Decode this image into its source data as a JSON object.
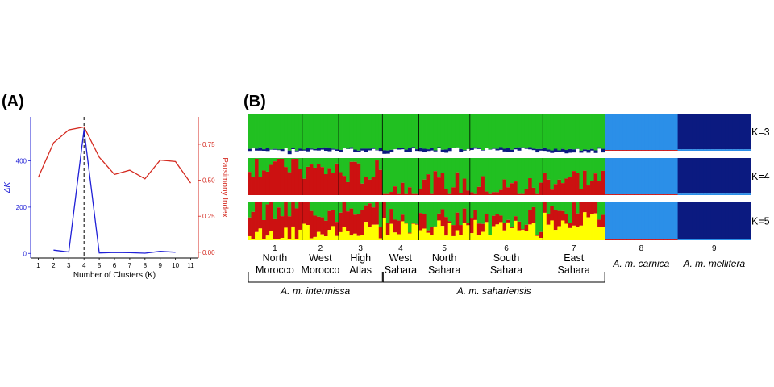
{
  "panel_a_label": "(A)",
  "panel_b_label": "(B)",
  "chart_data": [
    {
      "type": "line",
      "x": [
        1,
        2,
        3,
        4,
        5,
        6,
        7,
        8,
        9,
        10,
        11
      ],
      "xlabel": "Number of Clusters (K)",
      "xlim": [
        0.5,
        11.5
      ],
      "series": [
        {
          "name": "ΔK",
          "axis": "left",
          "color": "#1f1fd6",
          "x": [
            2,
            3,
            4,
            5,
            6,
            7,
            8,
            9,
            10
          ],
          "values": [
            14,
            6,
            535,
            2,
            4,
            3,
            1,
            9,
            5
          ]
        },
        {
          "name": "Parsimony Index",
          "axis": "right",
          "color": "#d42a20",
          "x": [
            1,
            2,
            3,
            4,
            5,
            6,
            7,
            8,
            9,
            10,
            11
          ],
          "values": [
            0.52,
            0.76,
            0.85,
            0.87,
            0.66,
            0.54,
            0.57,
            0.51,
            0.64,
            0.63,
            0.48
          ]
        }
      ],
      "ylabel_left": "ΔK",
      "ylabel_right": "Parsimony Index",
      "ylim_left": [
        -20,
        590
      ],
      "yticks_left": [
        0,
        200,
        400
      ],
      "ylim_right": [
        -0.04,
        0.94
      ],
      "yticks_right": [
        "0.00",
        "0.25",
        "0.50",
        "0.75"
      ],
      "vline_x": 4,
      "grid": false
    },
    {
      "type": "bar",
      "chart": "stacked admixture barplot",
      "rows": [
        "K=3",
        "K=4",
        "K=5"
      ],
      "groups": [
        {
          "num": "1",
          "name": [
            "North",
            "Morocco"
          ],
          "samples": 15
        },
        {
          "num": "2",
          "name": [
            "West",
            "Morocco"
          ],
          "samples": 10
        },
        {
          "num": "3",
          "name": [
            "High",
            "Atlas"
          ],
          "samples": 12
        },
        {
          "num": "4",
          "name": [
            "West",
            "Sahara"
          ],
          "samples": 10
        },
        {
          "num": "5",
          "name": [
            "North",
            "Sahara"
          ],
          "samples": 14
        },
        {
          "num": "6",
          "name": [
            "South",
            "Sahara"
          ],
          "samples": 20
        },
        {
          "num": "7",
          "name": [
            "East",
            "Sahara"
          ],
          "samples": 17
        },
        {
          "num": "8",
          "name": [
            "A. m. carnica"
          ],
          "samples": 20
        },
        {
          "num": "9",
          "name": [
            "A. m. mellifera"
          ],
          "samples": 20
        }
      ],
      "subspecies": [
        {
          "name": "A. m. intermissa",
          "groups": [
            "1",
            "2",
            "3"
          ]
        },
        {
          "name": "A. m. sahariensis",
          "groups": [
            "4",
            "5",
            "6",
            "7"
          ]
        }
      ],
      "colors": {
        "green": "#21c021",
        "red": "#cc1111",
        "yellow": "#ffff00",
        "lightblue": "#2b8fe8",
        "navy": "#0b1a80"
      }
    }
  ]
}
